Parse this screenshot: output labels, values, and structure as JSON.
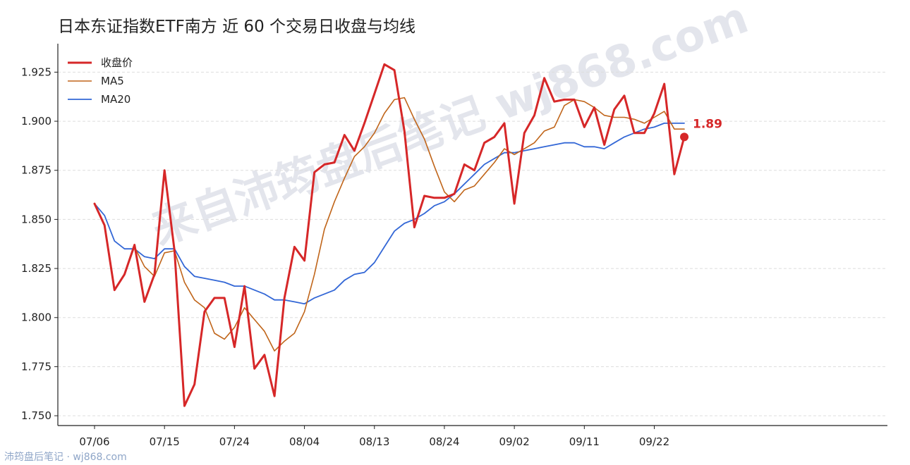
{
  "title": "日本东证指数ETF南方 近 60 个交易日收盘与均线",
  "watermark": "来自沛筠盘后笔记 wj868.com",
  "footer": "沛筠盘后笔记 · wj868.com",
  "colors": {
    "close": "#d62728",
    "ma5": "#c0651a",
    "ma20": "#3367d6",
    "grid": "#dddddd",
    "axis": "#222222"
  },
  "chart_data": {
    "type": "line",
    "title": "日本东证指数ETF南方 近 60 个交易日收盘与均线",
    "xlabel": "",
    "ylabel": "",
    "ylim": [
      1.745,
      1.9395
    ],
    "yticks": [
      1.75,
      1.775,
      1.8,
      1.825,
      1.85,
      1.875,
      1.9,
      1.925
    ],
    "ytick_labels": [
      "1.750",
      "1.775",
      "1.800",
      "1.825",
      "1.850",
      "1.875",
      "1.900",
      "1.925"
    ],
    "x_ticks": [
      {
        "index": 0,
        "label": "07/06"
      },
      {
        "index": 7,
        "label": "07/15"
      },
      {
        "index": 14,
        "label": "07/24"
      },
      {
        "index": 21,
        "label": "08/04"
      },
      {
        "index": 28,
        "label": "08/13"
      },
      {
        "index": 35,
        "label": "08/24"
      },
      {
        "index": 42,
        "label": "09/02"
      },
      {
        "index": 49,
        "label": "09/11"
      },
      {
        "index": 56,
        "label": "09/22"
      }
    ],
    "grid": "horizontal dashed",
    "legend": "top-left",
    "series": [
      {
        "name": "收盘价",
        "color": "#d62728",
        "values": [
          1.858,
          1.847,
          1.814,
          1.822,
          1.837,
          1.808,
          1.822,
          1.875,
          1.834,
          1.755,
          1.766,
          1.803,
          1.81,
          1.81,
          1.785,
          1.816,
          1.774,
          1.781,
          1.76,
          1.81,
          1.836,
          1.829,
          1.874,
          1.878,
          1.879,
          1.893,
          1.885,
          1.899,
          1.914,
          1.929,
          1.926,
          1.895,
          1.846,
          1.862,
          1.861,
          1.861,
          1.863,
          1.878,
          1.875,
          1.889,
          1.892,
          1.899,
          1.858,
          1.894,
          1.903,
          1.922,
          1.91,
          1.911,
          1.911,
          1.897,
          1.907,
          1.888,
          1.906,
          1.913,
          1.894,
          1.894,
          1.904,
          1.919,
          1.873,
          1.892
        ]
      },
      {
        "name": "MA5",
        "color": "#c0651a",
        "values": [
          1.858,
          1.847,
          1.814,
          1.822,
          1.836,
          1.826,
          1.821,
          1.833,
          1.834,
          1.818,
          1.809,
          1.805,
          1.792,
          1.789,
          1.795,
          1.805,
          1.799,
          1.793,
          1.783,
          1.788,
          1.792,
          1.803,
          1.822,
          1.845,
          1.859,
          1.871,
          1.882,
          1.887,
          1.894,
          1.904,
          1.911,
          1.912,
          1.901,
          1.891,
          1.877,
          1.864,
          1.859,
          1.865,
          1.867,
          1.873,
          1.879,
          1.886,
          1.883,
          1.886,
          1.889,
          1.895,
          1.897,
          1.908,
          1.911,
          1.91,
          1.907,
          1.903,
          1.902,
          1.902,
          1.901,
          1.899,
          1.902,
          1.905,
          1.896,
          1.896
        ]
      },
      {
        "name": "MA20",
        "color": "#3367d6",
        "values": [
          1.858,
          1.852,
          1.839,
          1.835,
          1.835,
          1.831,
          1.83,
          1.835,
          1.835,
          1.826,
          1.821,
          1.82,
          1.819,
          1.818,
          1.816,
          1.816,
          1.814,
          1.812,
          1.809,
          1.809,
          1.808,
          1.807,
          1.81,
          1.812,
          1.814,
          1.819,
          1.822,
          1.823,
          1.828,
          1.836,
          1.844,
          1.848,
          1.85,
          1.853,
          1.857,
          1.859,
          1.863,
          1.868,
          1.873,
          1.878,
          1.881,
          1.884,
          1.884,
          1.885,
          1.886,
          1.887,
          1.888,
          1.889,
          1.889,
          1.887,
          1.887,
          1.886,
          1.889,
          1.892,
          1.894,
          1.896,
          1.897,
          1.899,
          1.899,
          1.899
        ]
      }
    ],
    "annotations": [
      {
        "index": 59,
        "value": 1.892,
        "label": "1.89"
      }
    ]
  }
}
